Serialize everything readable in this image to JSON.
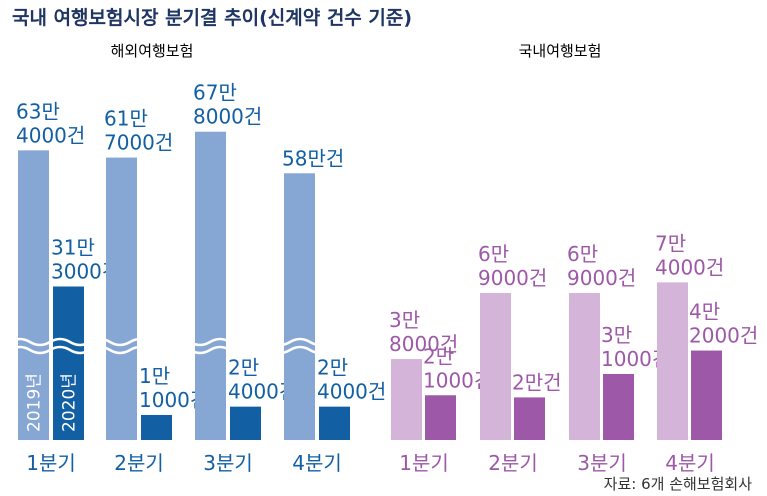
{
  "title": "국내 여행보험시장 분기결 추이(신계약 건수 기준)",
  "source": "자료: 6개 손해보험회사",
  "colors": {
    "overseas_2019": "#86a6d4",
    "overseas_2020": "#135fa4",
    "overseas_text": "#135fa4",
    "domestic_2019": "#d4b4d8",
    "domestic_2020": "#9d58a8",
    "domestic_text": "#9d58a8",
    "category_text": "#135fa4"
  },
  "chart_data": {
    "type": "bar",
    "groups": [
      {
        "name": "해외여행보험",
        "categories": [
          "1분기",
          "2분기",
          "3분기",
          "4분기"
        ],
        "series": [
          {
            "name": "2019년",
            "values": [
              634000,
              617000,
              678000,
              580000
            ],
            "labels": [
              [
                "63만",
                "4000건"
              ],
              [
                "61만",
                "7000건"
              ],
              [
                "67만",
                "8000건"
              ],
              [
                "58만건"
              ]
            ]
          },
          {
            "name": "2020년",
            "values": [
              313000,
              11000,
              24000,
              24000
            ],
            "labels": [
              [
                "31만",
                "3000건"
              ],
              [
                "1만",
                "1000건"
              ],
              [
                "2만",
                "4000건"
              ],
              [
                "2만",
                "4000건"
              ]
            ]
          }
        ]
      },
      {
        "name": "국내여행보험",
        "categories": [
          "1분기",
          "2분기",
          "3분기",
          "4분기"
        ],
        "series": [
          {
            "name": "2019년",
            "values": [
              38000,
              69000,
              69000,
              74000
            ],
            "labels": [
              [
                "3만",
                "8000건"
              ],
              [
                "6만",
                "9000건"
              ],
              [
                "6만",
                "9000건"
              ],
              [
                "7만",
                "4000건"
              ]
            ]
          },
          {
            "name": "2020년",
            "values": [
              21000,
              20000,
              31000,
              42000
            ],
            "labels": [
              [
                "2만",
                "1000건"
              ],
              [
                "2만건"
              ],
              [
                "3만",
                "1000건"
              ],
              [
                "4만",
                "2000건"
              ]
            ]
          }
        ]
      }
    ]
  }
}
